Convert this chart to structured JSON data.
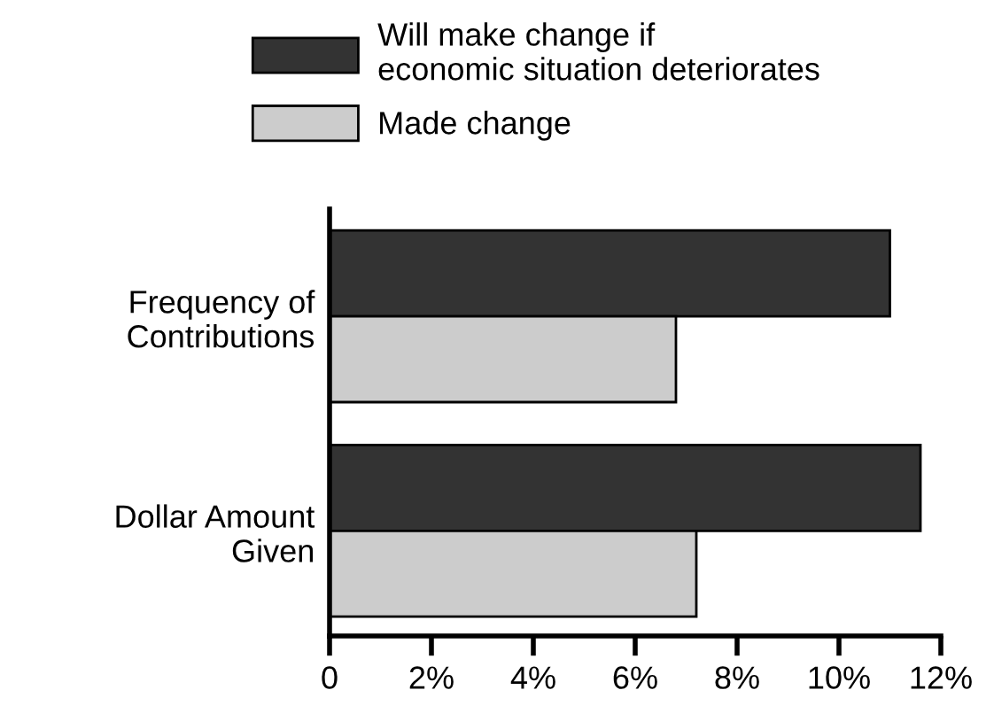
{
  "chart_data": {
    "type": "bar",
    "orientation": "horizontal",
    "categories": [
      "Frequency of\nContributions",
      "Dollar Amount\nGiven"
    ],
    "series": [
      {
        "name": "Will make change if\neconomic situation deteriorates",
        "color": "#333333",
        "values": [
          11.0,
          11.6
        ]
      },
      {
        "name": "Made change",
        "color": "#cccccc",
        "values": [
          6.8,
          7.2
        ]
      }
    ],
    "xlim": [
      0,
      12
    ],
    "xticks": [
      0,
      {
        "value": 2,
        "label": "2%"
      },
      {
        "value": 4,
        "label": "4%"
      },
      {
        "value": 6,
        "label": "6%"
      },
      {
        "value": 8,
        "label": "8%"
      },
      {
        "value": 10,
        "label": "10%"
      },
      {
        "value": 12,
        "label": "12%"
      }
    ],
    "grid": false,
    "legend": "top"
  }
}
